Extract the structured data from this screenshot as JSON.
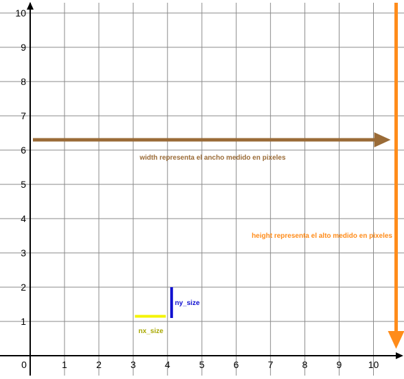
{
  "axes": {
    "x_ticks": [
      "0",
      "1",
      "2",
      "3",
      "4",
      "5",
      "6",
      "7",
      "8",
      "9",
      "10"
    ],
    "y_ticks": [
      "1",
      "2",
      "3",
      "4",
      "5",
      "6",
      "7",
      "8",
      "9",
      "10"
    ],
    "x_range": [
      0,
      11
    ],
    "y_range": [
      0,
      10.5
    ],
    "grid": true
  },
  "annotations": {
    "width_label": "width representa el ancho medido en pixeles",
    "height_label": "height representa el alto medido en pixeles",
    "nx_label": "nx_size",
    "ny_label": "ny_size"
  },
  "colors": {
    "width_arrow": "#9a6b37",
    "height_arrow": "#ff8c1a",
    "nx_bar": "#f4f400",
    "nx_text": "#a8a800",
    "ny_bar": "#1010d0",
    "grid": "#8a8a8a",
    "axis": "#000000"
  },
  "arrows": {
    "width": {
      "from": [
        0,
        6.3
      ],
      "to": [
        10.5,
        6.3
      ]
    },
    "height": {
      "from": [
        10.6,
        10.3
      ],
      "to": [
        10.6,
        0.2
      ]
    }
  },
  "bars": {
    "nx": {
      "from": [
        3.05,
        1.15
      ],
      "to": [
        3.95,
        1.15
      ]
    },
    "ny": {
      "from": [
        4.12,
        2.0
      ],
      "to": [
        4.12,
        1.1
      ]
    }
  }
}
